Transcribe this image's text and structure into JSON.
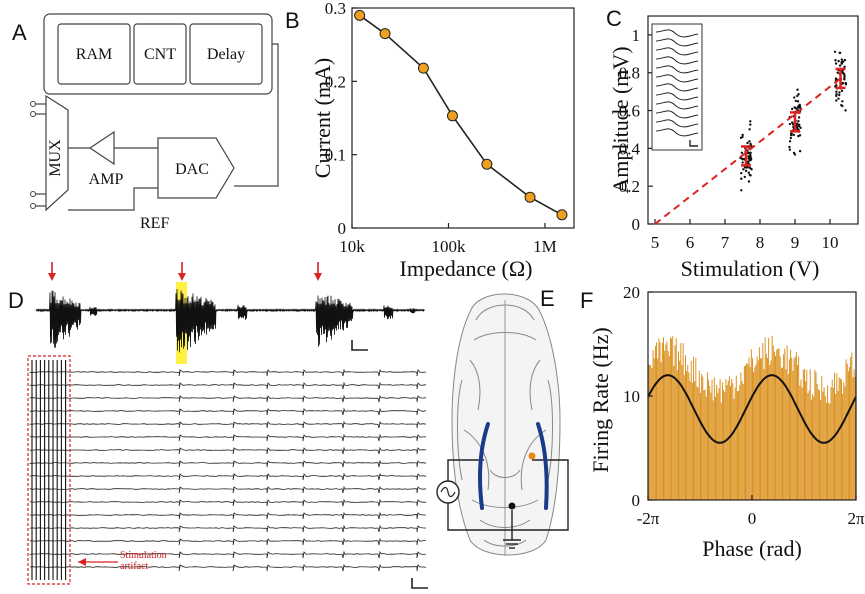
{
  "panels": {
    "a": "A",
    "b": "B",
    "c": "C",
    "d": "D",
    "e": "E",
    "f": "F"
  },
  "circuit": {
    "ram": "RAM",
    "cnt": "CNT",
    "delay": "Delay",
    "mux": "MUX",
    "amp": "AMP",
    "dac": "DAC",
    "ref": "REF"
  },
  "chart_data": [
    {
      "panel": "B",
      "type": "line",
      "xscale": "log",
      "xlabel": "Impedance (Ω)",
      "ylabel": "Current (mA)",
      "x_ticks": [
        "10k",
        "100k",
        "1M"
      ],
      "y_ticks": [
        "0",
        "0.1",
        "0.2",
        "0.3"
      ],
      "xlim": [
        10000,
        2000000
      ],
      "ylim": [
        0,
        0.3
      ],
      "x": [
        12000,
        22000,
        55000,
        110000,
        250000,
        700000,
        1500000
      ],
      "y": [
        0.29,
        0.265,
        0.218,
        0.153,
        0.087,
        0.042,
        0.018
      ],
      "marker_color": "#f0a020"
    },
    {
      "panel": "C",
      "type": "scatter",
      "xlabel": "Stimulation (V)",
      "ylabel": "Amplitude (mV)",
      "x_ticks": [
        "5",
        "6",
        "7",
        "8",
        "9",
        "10"
      ],
      "y_ticks": [
        "0",
        "0.2",
        "0.4",
        "0.6",
        "0.8",
        "1"
      ],
      "xlim": [
        4.8,
        10.8
      ],
      "ylim": [
        0,
        1.1
      ],
      "groups": [
        {
          "x": 7.6,
          "mean": 0.36,
          "error": 0.05
        },
        {
          "x": 9.0,
          "mean": 0.54,
          "error": 0.05
        },
        {
          "x": 10.3,
          "mean": 0.77,
          "error": 0.05
        }
      ],
      "fit_line": {
        "x": [
          5,
          10.3
        ],
        "y": [
          0,
          0.77
        ],
        "color": "#dd2222"
      }
    },
    {
      "panel": "F",
      "type": "bar",
      "xlabel": "Phase (rad)",
      "ylabel": "Firing Rate (Hz)",
      "x_ticks": [
        "-2π",
        "0",
        "2π"
      ],
      "y_ticks": [
        "0",
        "10",
        "20"
      ],
      "xlim": [
        -6.2832,
        6.2832
      ],
      "ylim": [
        0,
        20
      ],
      "bar_color": "#d98a10",
      "bar_values_mean": 12.5,
      "fit": {
        "type": "cosine",
        "offset": 8.75,
        "amplitude": 3.25,
        "period": 6.2832,
        "phase_peak": 1.2
      }
    }
  ],
  "panel_d": {
    "annotation": "Stimulation artifact",
    "annotation_line1": "Stimulation",
    "annotation_line2": "artifact"
  }
}
